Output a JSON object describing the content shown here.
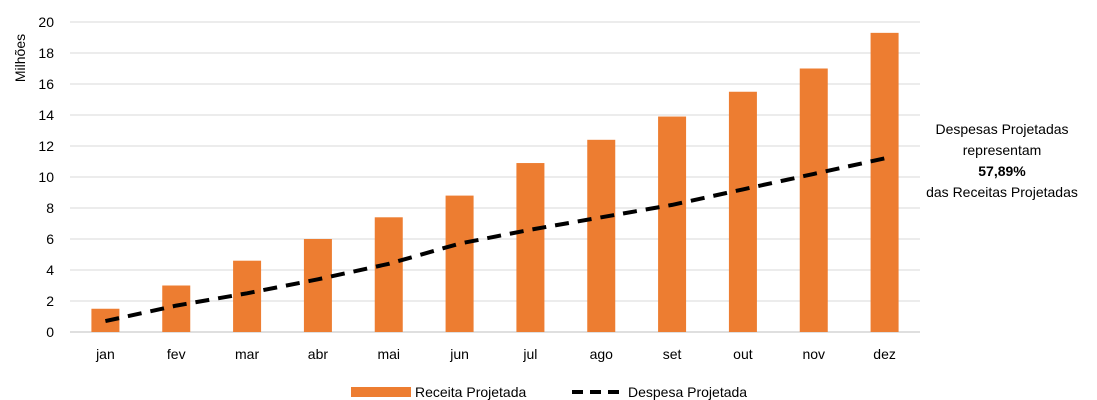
{
  "chart_data": {
    "type": "bar",
    "categories": [
      "jan",
      "fev",
      "mar",
      "abr",
      "mai",
      "jun",
      "jul",
      "ago",
      "set",
      "out",
      "nov",
      "dez"
    ],
    "series": [
      {
        "name": "Receita Projetada",
        "type": "bar",
        "color": "#ED7D31",
        "values": [
          1.5,
          3.0,
          4.6,
          6.0,
          7.4,
          8.8,
          10.9,
          12.4,
          13.9,
          15.5,
          17.0,
          19.3
        ]
      },
      {
        "name": "Despesa Projetada",
        "type": "line",
        "style": "dashed",
        "color": "#000000",
        "values": [
          0.7,
          1.7,
          2.5,
          3.4,
          4.4,
          5.7,
          6.6,
          7.4,
          8.2,
          9.2,
          10.2,
          11.2
        ]
      }
    ],
    "ylabel": "Milhões",
    "ylim": [
      0,
      20
    ],
    "yticks": [
      0,
      2,
      4,
      6,
      8,
      10,
      12,
      14,
      16,
      18,
      20
    ],
    "grid": true,
    "legend": "bottom"
  },
  "annotation": {
    "line1": "Despesas Projetadas",
    "line2": "representam",
    "percent": "57,89%",
    "line3": "das Receitas Projetadas"
  }
}
